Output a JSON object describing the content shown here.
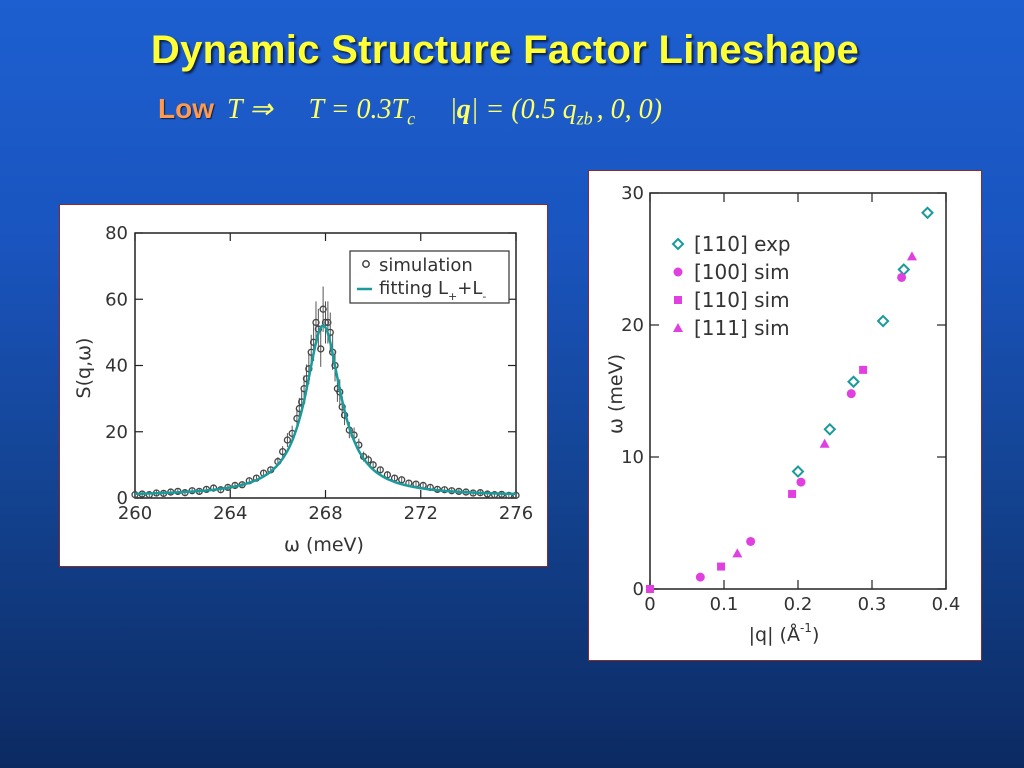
{
  "slide": {
    "title": "Dynamic Structure Factor Lineshape",
    "subtitle": {
      "low": "Low",
      "t_arrow": "T ⇒",
      "temp_prefix": "T = 0.3T",
      "temp_sub": "c",
      "q_left": "|",
      "q_bold": "q",
      "q_right": "| = (0.5 q",
      "q_sub": "zb",
      "q_tail": ", 0, 0)"
    }
  },
  "colors": {
    "title": "#ffff33",
    "low": "#ff9a4d",
    "fit_line": "#1a9a9a",
    "exp_110": "#1a9a9a",
    "sim_100": "#e040e0",
    "sim_110": "#e040e0",
    "sim_111": "#e040e0",
    "sim_points": "#444444"
  },
  "chart_data": [
    {
      "type": "scatter",
      "xlabel": "ω (meV)",
      "ylabel": "S(q,ω)",
      "xlim": [
        260,
        276
      ],
      "ylim": [
        0,
        80
      ],
      "xticks": [
        260,
        264,
        268,
        272,
        276
      ],
      "yticks": [
        0,
        20,
        40,
        60,
        80
      ],
      "legend_placement": "top-right",
      "legend": {
        "simulation": "simulation",
        "fitting_main": "fitting L",
        "fitting_sub1": "+",
        "fitting_plus": "+L",
        "fitting_sub2": "-"
      },
      "series": [
        {
          "name": "simulation",
          "x": [
            260.0,
            260.3,
            260.6,
            260.9,
            261.2,
            261.5,
            261.8,
            262.1,
            262.4,
            262.7,
            263.0,
            263.3,
            263.6,
            263.9,
            264.2,
            264.5,
            264.8,
            265.1,
            265.4,
            265.7,
            266.0,
            266.2,
            266.4,
            266.6,
            266.8,
            266.9,
            267.0,
            267.1,
            267.2,
            267.3,
            267.4,
            267.5,
            267.6,
            267.7,
            267.8,
            267.9,
            268.0,
            268.1,
            268.2,
            268.3,
            268.4,
            268.5,
            268.6,
            268.7,
            268.8,
            269.0,
            269.2,
            269.4,
            269.6,
            269.8,
            270.0,
            270.3,
            270.6,
            270.9,
            271.2,
            271.5,
            271.8,
            272.1,
            272.4,
            272.7,
            273.0,
            273.3,
            273.6,
            273.9,
            274.2,
            274.5,
            274.8,
            275.1,
            275.4,
            275.7,
            276.0
          ],
          "y": [
            1.0,
            1.2,
            1.0,
            1.5,
            1.4,
            1.8,
            2.0,
            1.6,
            2.2,
            2.0,
            2.6,
            3.0,
            2.5,
            3.2,
            3.8,
            4.0,
            5.2,
            6.0,
            7.5,
            8.5,
            11.0,
            14.0,
            17.5,
            19.5,
            24.0,
            27.0,
            29.0,
            33.0,
            36.0,
            39.0,
            44.0,
            47.0,
            53.0,
            51.0,
            45.0,
            57.0,
            53.0,
            53.0,
            50.0,
            44.0,
            40.0,
            33.0,
            32.0,
            27.5,
            25.0,
            20.5,
            19.0,
            16.0,
            12.5,
            11.5,
            10.0,
            8.5,
            7.0,
            6.0,
            5.5,
            4.5,
            4.2,
            3.8,
            3.2,
            2.6,
            2.5,
            2.2,
            2.0,
            1.8,
            1.5,
            1.6,
            1.2,
            1.0,
            1.1,
            0.8,
            0.8
          ]
        }
      ],
      "fit": {
        "name": "fitting",
        "center": 267.9,
        "amplitude": 51.5,
        "hwhm": 0.9,
        "baseline": 0.6
      }
    },
    {
      "type": "scatter",
      "xlabel": "|q| (Å",
      "xlabel_sup": "-1",
      "xlabel_tail": ")",
      "ylabel": "ω (meV)",
      "xlim": [
        0,
        0.4
      ],
      "ylim": [
        0,
        30
      ],
      "xticks": [
        0,
        0.1,
        0.2,
        0.3,
        0.4
      ],
      "yticks": [
        0,
        10,
        20,
        30
      ],
      "legend_placement": "top-left",
      "series": [
        {
          "name": "[110] exp",
          "marker": "diamond-open",
          "x": [
            0.2,
            0.243,
            0.275,
            0.315,
            0.343,
            0.375
          ],
          "y": [
            8.9,
            12.1,
            15.7,
            20.3,
            24.2,
            28.5
          ]
        },
        {
          "name": "[100] sim",
          "marker": "circle",
          "x": [
            0.068,
            0.136,
            0.204,
            0.272,
            0.34
          ],
          "y": [
            0.9,
            3.6,
            8.1,
            14.8,
            23.6
          ]
        },
        {
          "name": "[110] sim",
          "marker": "square",
          "x": [
            0.0,
            0.096,
            0.192,
            0.288
          ],
          "y": [
            0.0,
            1.7,
            7.2,
            16.6
          ]
        },
        {
          "name": "[111] sim",
          "marker": "triangle",
          "x": [
            0.118,
            0.236,
            0.354
          ],
          "y": [
            2.7,
            11.0,
            25.2
          ]
        }
      ]
    }
  ]
}
